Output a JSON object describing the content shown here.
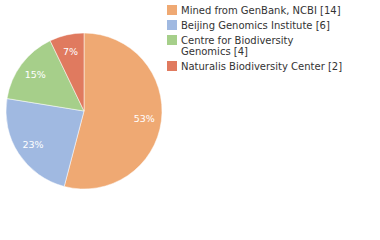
{
  "chart_data": {
    "type": "pie",
    "categories": [
      "Mined from GenBank, NCBI [14]",
      "Beijing Genomics Institute [6]",
      "Centre for Biodiversity Genomics [4]",
      "Naturalis Biodiversity Center [2]"
    ],
    "values": [
      53,
      23,
      15,
      7
    ],
    "value_labels": [
      "53%",
      "23%",
      "15%",
      "7%"
    ],
    "colors": [
      "#efa973",
      "#a0b9e1",
      "#a6cf8a",
      "#e07a5f"
    ],
    "data_labels": true,
    "legend": "upper right"
  }
}
